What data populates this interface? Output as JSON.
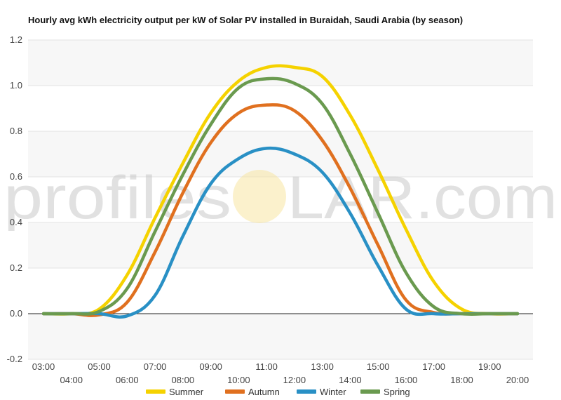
{
  "chart_data": {
    "type": "line",
    "title": "Hourly avg kWh electricity output per kW of Solar PV installed in Buraidah, Saudi Arabia (by season)",
    "xlabel": "",
    "ylabel": "",
    "categories": [
      "03:00",
      "04:00",
      "05:00",
      "06:00",
      "07:00",
      "08:00",
      "09:00",
      "10:00",
      "11:00",
      "12:00",
      "13:00",
      "14:00",
      "15:00",
      "16:00",
      "17:00",
      "18:00",
      "19:00",
      "20:00"
    ],
    "ylim": [
      -0.2,
      1.2
    ],
    "yticks": [
      "1.2",
      "1.0",
      "0.8",
      "0.6",
      "0.4",
      "0.2",
      "0.0",
      "-0.2"
    ],
    "grid": true,
    "legend_position": "bottom",
    "series": [
      {
        "name": "Summer",
        "color": "#f5d200",
        "values": [
          0,
          0,
          0.02,
          0.17,
          0.42,
          0.66,
          0.88,
          1.02,
          1.08,
          1.08,
          1.04,
          0.87,
          0.63,
          0.37,
          0.14,
          0.02,
          0,
          0
        ]
      },
      {
        "name": "Autumn",
        "color": "#e0701f",
        "values": [
          0,
          0,
          -0.005,
          0.05,
          0.27,
          0.53,
          0.75,
          0.88,
          0.915,
          0.89,
          0.76,
          0.55,
          0.3,
          0.06,
          0.005,
          0,
          0,
          0
        ]
      },
      {
        "name": "Winter",
        "color": "#2990c5",
        "values": [
          0,
          0,
          0,
          -0.01,
          0.08,
          0.34,
          0.57,
          0.68,
          0.725,
          0.7,
          0.62,
          0.44,
          0.21,
          0.02,
          0,
          0,
          0,
          0
        ]
      },
      {
        "name": "Spring",
        "color": "#6a9a4f",
        "values": [
          0,
          0,
          0.01,
          0.11,
          0.36,
          0.61,
          0.83,
          0.99,
          1.03,
          1.01,
          0.92,
          0.7,
          0.44,
          0.18,
          0.03,
          0,
          0,
          0
        ]
      }
    ]
  },
  "watermark": {
    "text": "profileSOLAR.com",
    "left_part": "profiles",
    "sun_letter": "O",
    "right_part": "LAR.com"
  }
}
